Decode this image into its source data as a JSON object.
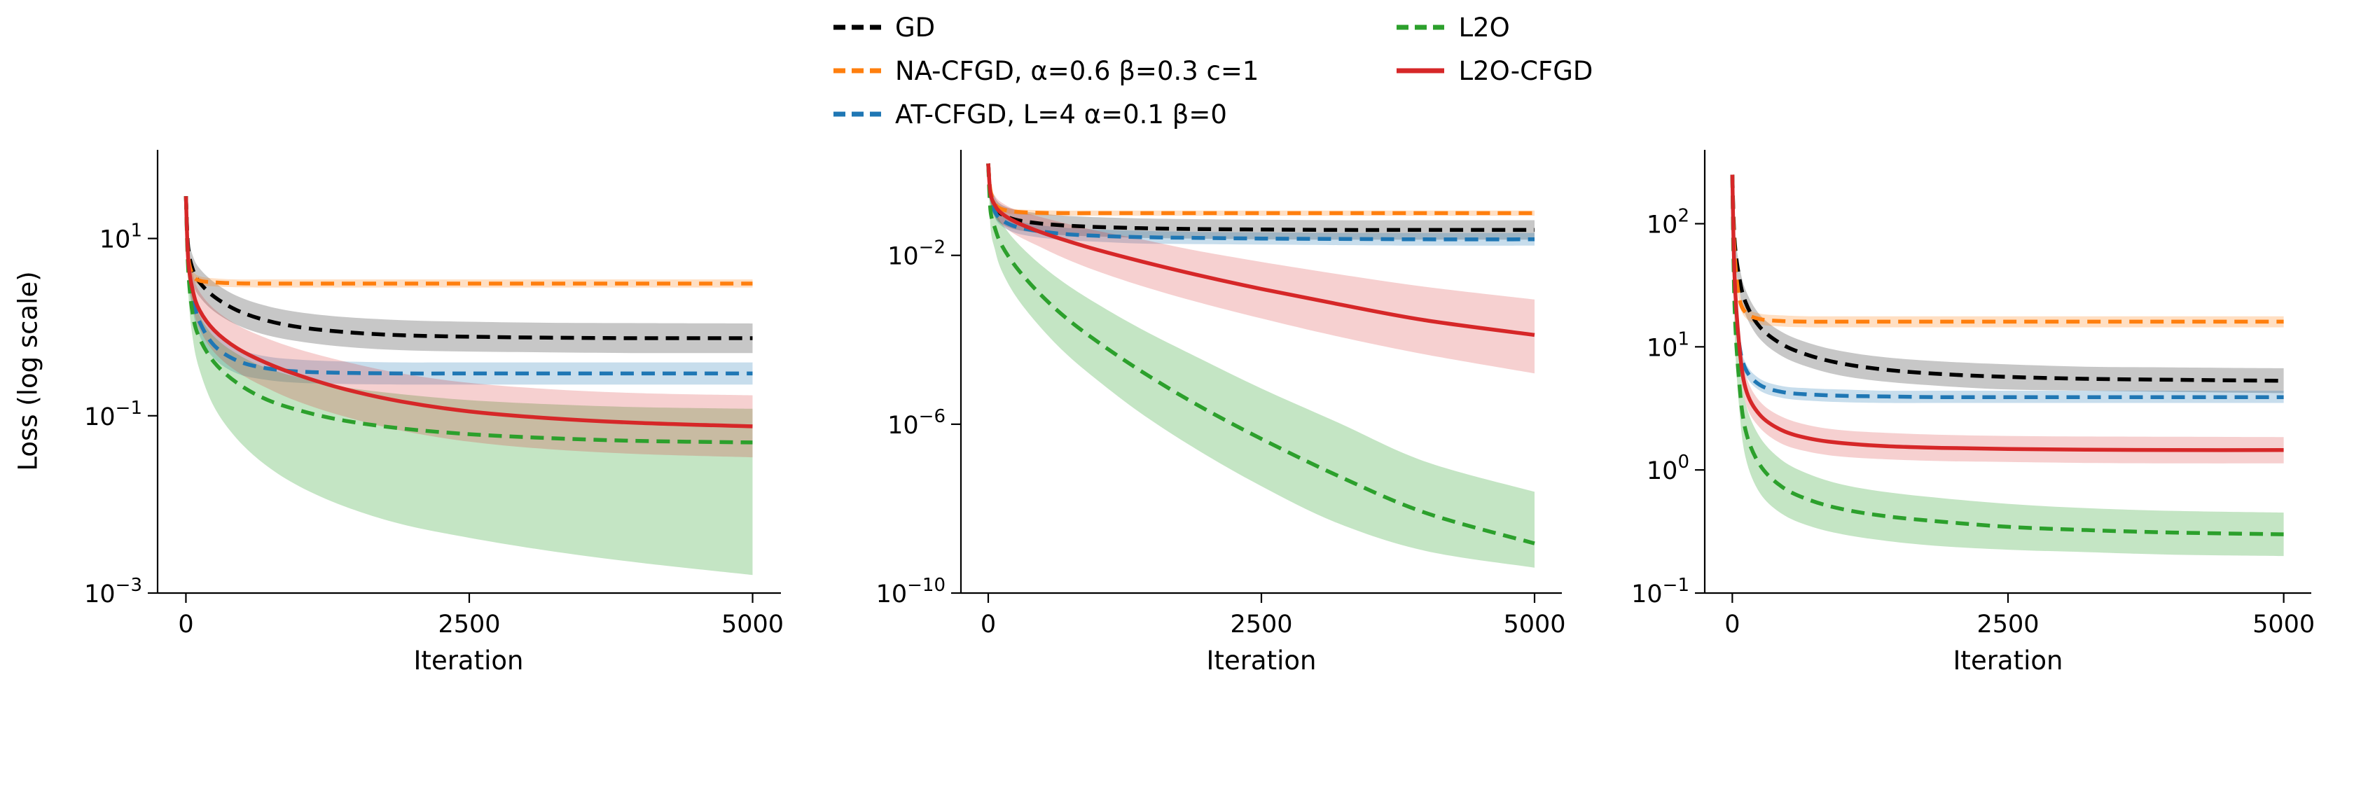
{
  "figure": {
    "background": "#ffffff",
    "legend_position": "top-center"
  },
  "legend": {
    "entries": [
      {
        "label": "GD",
        "color": "#000000",
        "dashed": true
      },
      {
        "label": "NA-CFGD, α=0.6 β=0.3 c=1",
        "color": "#ff7f0e",
        "dashed": true
      },
      {
        "label": "AT-CFGD, L=4 α=0.1 β=0",
        "color": "#1f77b4",
        "dashed": true
      },
      {
        "label": "L2O",
        "color": "#2ca02c",
        "dashed": true
      },
      {
        "label": "L2O-CFGD",
        "color": "#d62728",
        "dashed": false
      }
    ]
  },
  "chart_data": [
    {
      "type": "line",
      "xlabel": "Iteration",
      "ylabel": "Loss (log scale)",
      "grid": false,
      "xlim": [
        -250,
        5250
      ],
      "ylim_exp": [
        -3,
        2
      ],
      "x_ticks": [
        0,
        2500,
        5000
      ],
      "y_tick_exponents": [
        1,
        -1,
        -3
      ],
      "x": [
        0,
        20,
        60,
        120,
        250,
        450,
        700,
        1000,
        1400,
        1900,
        2500,
        3200,
        4000,
        5000
      ],
      "series": [
        {
          "name": "GD",
          "color": "#000000",
          "dashed": true,
          "band_alpha": 0.22,
          "y": [
            30,
            8,
            4.5,
            3.2,
            2.2,
            1.55,
            1.2,
            1.0,
            0.88,
            0.81,
            0.78,
            0.76,
            0.75,
            0.75
          ],
          "band_hi": [
            30,
            11,
            6.4,
            4.6,
            3.2,
            2.25,
            1.75,
            1.47,
            1.3,
            1.2,
            1.15,
            1.12,
            1.11,
            1.1
          ],
          "band_lo": [
            30,
            5.6,
            3.1,
            2.2,
            1.5,
            1.06,
            0.82,
            0.69,
            0.6,
            0.55,
            0.53,
            0.52,
            0.51,
            0.51
          ]
        },
        {
          "name": "NA-CFGD",
          "color": "#ff7f0e",
          "dashed": true,
          "band_alpha": 0.25,
          "y": [
            30,
            6.5,
            3.9,
            3.35,
            3.2,
            3.12,
            3.1,
            3.1,
            3.1,
            3.1,
            3.1,
            3.1,
            3.1,
            3.1
          ],
          "band_hi": [
            30,
            7.3,
            4.4,
            3.75,
            3.55,
            3.45,
            3.45,
            3.45,
            3.45,
            3.45,
            3.45,
            3.45,
            3.45,
            3.45
          ],
          "band_lo": [
            30,
            5.8,
            3.5,
            3.0,
            2.88,
            2.82,
            2.8,
            2.8,
            2.8,
            2.8,
            2.8,
            2.8,
            2.8,
            2.8
          ]
        },
        {
          "name": "AT-CFGD",
          "color": "#1f77b4",
          "dashed": true,
          "band_alpha": 0.25,
          "y": [
            30,
            5.5,
            2.2,
            1.15,
            0.62,
            0.42,
            0.345,
            0.315,
            0.305,
            0.3,
            0.3,
            0.3,
            0.3,
            0.3
          ],
          "band_hi": [
            30,
            7.5,
            3.1,
            1.65,
            0.88,
            0.58,
            0.47,
            0.43,
            0.41,
            0.4,
            0.4,
            0.4,
            0.4,
            0.4
          ],
          "band_lo": [
            30,
            4.0,
            1.55,
            0.8,
            0.44,
            0.3,
            0.255,
            0.235,
            0.228,
            0.225,
            0.225,
            0.225,
            0.225,
            0.225
          ]
        },
        {
          "name": "L2O",
          "color": "#2ca02c",
          "dashed": true,
          "band_alpha": 0.28,
          "y": [
            30,
            4.5,
            1.4,
            0.75,
            0.4,
            0.235,
            0.155,
            0.115,
            0.088,
            0.072,
            0.062,
            0.056,
            0.052,
            0.05
          ],
          "band_hi": [
            30,
            7,
            2.4,
            1.35,
            0.78,
            0.5,
            0.35,
            0.27,
            0.21,
            0.175,
            0.15,
            0.135,
            0.125,
            0.12
          ],
          "band_lo": [
            30,
            2.6,
            0.75,
            0.33,
            0.125,
            0.055,
            0.028,
            0.016,
            0.0095,
            0.006,
            0.0042,
            0.003,
            0.0022,
            0.0016
          ]
        },
        {
          "name": "L2O-CFGD",
          "color": "#d62728",
          "dashed": false,
          "band_alpha": 0.22,
          "y": [
            30,
            5.8,
            2.6,
            1.55,
            0.92,
            0.58,
            0.4,
            0.285,
            0.2,
            0.145,
            0.112,
            0.094,
            0.083,
            0.076
          ],
          "band_hi": [
            30,
            8.5,
            4.0,
            2.5,
            1.6,
            1.06,
            0.76,
            0.56,
            0.41,
            0.3,
            0.235,
            0.2,
            0.18,
            0.17
          ],
          "band_lo": [
            30,
            3.9,
            1.7,
            0.95,
            0.52,
            0.315,
            0.21,
            0.143,
            0.098,
            0.068,
            0.051,
            0.042,
            0.037,
            0.034
          ]
        }
      ]
    },
    {
      "type": "line",
      "xlabel": "Iteration",
      "ylabel": "",
      "grid": false,
      "xlim": [
        -250,
        5250
      ],
      "ylim_exp": [
        -10,
        0.5
      ],
      "x_ticks": [
        0,
        2500,
        5000
      ],
      "y_tick_exponents": [
        -2,
        -6,
        -10
      ],
      "x": [
        0,
        20,
        60,
        120,
        250,
        450,
        700,
        1000,
        1400,
        1900,
        2500,
        3200,
        4000,
        5000
      ],
      "series": [
        {
          "name": "GD",
          "color": "#000000",
          "dashed": true,
          "band_alpha": 0.22,
          "y": [
            1.5,
            0.3,
            0.14,
            0.095,
            0.07,
            0.058,
            0.051,
            0.047,
            0.044,
            0.042,
            0.041,
            0.04,
            0.04,
            0.04
          ],
          "band_hi": [
            1.5,
            0.51,
            0.24,
            0.16,
            0.12,
            0.1,
            0.087,
            0.08,
            0.075,
            0.072,
            0.07,
            0.068,
            0.068,
            0.068
          ],
          "band_lo": [
            1.5,
            0.18,
            0.082,
            0.056,
            0.041,
            0.034,
            0.03,
            0.028,
            0.026,
            0.025,
            0.024,
            0.0235,
            0.0235,
            0.0235
          ]
        },
        {
          "name": "NA-CFGD",
          "color": "#ff7f0e",
          "dashed": true,
          "band_alpha": 0.25,
          "y": [
            1.5,
            0.35,
            0.17,
            0.125,
            0.108,
            0.102,
            0.1,
            0.1,
            0.1,
            0.1,
            0.1,
            0.1,
            0.1,
            0.1
          ],
          "band_hi": [
            1.5,
            0.42,
            0.2,
            0.145,
            0.125,
            0.118,
            0.115,
            0.115,
            0.115,
            0.115,
            0.115,
            0.115,
            0.115,
            0.115
          ],
          "band_lo": [
            1.5,
            0.29,
            0.145,
            0.108,
            0.094,
            0.089,
            0.087,
            0.087,
            0.087,
            0.087,
            0.087,
            0.087,
            0.087,
            0.087
          ]
        },
        {
          "name": "AT-CFGD",
          "color": "#1f77b4",
          "dashed": true,
          "band_alpha": 0.25,
          "y": [
            1.5,
            0.25,
            0.11,
            0.07,
            0.048,
            0.038,
            0.032,
            0.029,
            0.027,
            0.026,
            0.025,
            0.0245,
            0.024,
            0.024
          ],
          "band_hi": [
            1.5,
            0.35,
            0.154,
            0.098,
            0.067,
            0.053,
            0.045,
            0.041,
            0.038,
            0.036,
            0.035,
            0.034,
            0.034,
            0.034
          ],
          "band_lo": [
            1.5,
            0.18,
            0.079,
            0.05,
            0.034,
            0.027,
            0.023,
            0.021,
            0.019,
            0.0185,
            0.018,
            0.0175,
            0.017,
            0.017
          ]
        },
        {
          "name": "L2O",
          "color": "#2ca02c",
          "dashed": true,
          "band_alpha": 0.28,
          "y": [
            1.5,
            0.12,
            0.045,
            0.018,
            0.0055,
            0.0014,
            0.00035,
            9e-05,
            1.8e-05,
            3e-06,
            4.5e-07,
            6e-08,
            8e-09,
            1.5e-09
          ],
          "band_hi": [
            1.5,
            0.3,
            0.13,
            0.06,
            0.022,
            0.007,
            0.0022,
            0.0007,
            0.00018,
            4e-05,
            7e-06,
            1.1e-06,
            1.3e-07,
            2.5e-08
          ],
          "band_lo": [
            1.5,
            0.05,
            0.014,
            0.0045,
            0.0011,
            0.00024,
            5e-05,
            1.1e-05,
            1.8e-06,
            2.6e-07,
            3.4e-08,
            4.5e-09,
            1e-09,
            4e-10
          ]
        },
        {
          "name": "L2O-CFGD",
          "color": "#d62728",
          "dashed": false,
          "band_alpha": 0.22,
          "y": [
            1.5,
            0.3,
            0.155,
            0.1,
            0.062,
            0.038,
            0.023,
            0.0135,
            0.0072,
            0.0035,
            0.0016,
            0.0007,
            0.00029,
            0.00013
          ],
          "band_hi": [
            1.5,
            0.45,
            0.26,
            0.18,
            0.12,
            0.085,
            0.058,
            0.038,
            0.024,
            0.013,
            0.007,
            0.0036,
            0.0018,
            0.0009
          ],
          "band_lo": [
            1.5,
            0.2,
            0.095,
            0.055,
            0.031,
            0.017,
            0.0085,
            0.0042,
            0.0019,
            0.0008,
            0.00032,
            0.00012,
            4.5e-05,
            1.6e-05
          ]
        }
      ]
    },
    {
      "type": "line",
      "xlabel": "Iteration",
      "ylabel": "",
      "grid": false,
      "xlim": [
        -250,
        5250
      ],
      "ylim_exp": [
        -1,
        2.6
      ],
      "x_ticks": [
        0,
        2500,
        5000
      ],
      "y_tick_exponents": [
        2,
        1,
        0,
        -1
      ],
      "x": [
        0,
        20,
        60,
        120,
        250,
        450,
        700,
        1000,
        1400,
        1900,
        2500,
        3200,
        4000,
        5000
      ],
      "series": [
        {
          "name": "GD",
          "color": "#000000",
          "dashed": true,
          "band_alpha": 0.22,
          "y": [
            250,
            75,
            38,
            23,
            14.5,
            10.5,
            8.5,
            7.3,
            6.5,
            6.0,
            5.7,
            5.5,
            5.4,
            5.3
          ],
          "band_hi": [
            250,
            94,
            48,
            29,
            18.2,
            13.2,
            10.7,
            9.2,
            8.2,
            7.6,
            7.2,
            6.9,
            6.8,
            6.7
          ],
          "band_lo": [
            250,
            60,
            30,
            18.2,
            11.6,
            8.4,
            6.8,
            5.8,
            5.2,
            4.8,
            4.5,
            4.4,
            4.3,
            4.2
          ]
        },
        {
          "name": "NA-CFGD",
          "color": "#ff7f0e",
          "dashed": true,
          "band_alpha": 0.25,
          "y": [
            250,
            60,
            26,
            19,
            16.8,
            16.2,
            16,
            16,
            16,
            16,
            16,
            16,
            16,
            16
          ],
          "band_hi": [
            250,
            66,
            29,
            21,
            18.6,
            18,
            17.7,
            17.7,
            17.7,
            17.7,
            17.7,
            17.7,
            17.7,
            17.7
          ],
          "band_lo": [
            250,
            54,
            23.5,
            17.2,
            15.2,
            14.6,
            14.4,
            14.4,
            14.4,
            14.4,
            14.4,
            14.4,
            14.4,
            14.4
          ]
        },
        {
          "name": "AT-CFGD",
          "color": "#1f77b4",
          "dashed": true,
          "band_alpha": 0.25,
          "y": [
            250,
            30,
            11,
            6.6,
            4.9,
            4.3,
            4.1,
            4.0,
            3.95,
            3.9,
            3.9,
            3.9,
            3.9,
            3.9
          ],
          "band_hi": [
            250,
            34,
            12.4,
            7.4,
            5.5,
            4.8,
            4.6,
            4.5,
            4.4,
            4.4,
            4.4,
            4.4,
            4.4,
            4.4
          ],
          "band_lo": [
            250,
            26.5,
            9.8,
            5.9,
            4.4,
            3.85,
            3.65,
            3.55,
            3.5,
            3.5,
            3.5,
            3.5,
            3.5,
            3.5
          ]
        },
        {
          "name": "L2O",
          "color": "#2ca02c",
          "dashed": true,
          "band_alpha": 0.28,
          "y": [
            250,
            22,
            5.5,
            2.1,
            1.1,
            0.73,
            0.57,
            0.48,
            0.42,
            0.38,
            0.345,
            0.325,
            0.31,
            0.3
          ],
          "band_hi": [
            250,
            33,
            8.8,
            3.5,
            1.85,
            1.2,
            0.92,
            0.76,
            0.66,
            0.59,
            0.53,
            0.49,
            0.465,
            0.45
          ],
          "band_lo": [
            250,
            14.5,
            3.4,
            1.26,
            0.65,
            0.44,
            0.35,
            0.3,
            0.265,
            0.24,
            0.225,
            0.215,
            0.205,
            0.2
          ]
        },
        {
          "name": "L2O-CFGD",
          "color": "#d62728",
          "dashed": false,
          "band_alpha": 0.22,
          "y": [
            250,
            38,
            11,
            4.6,
            2.8,
            2.1,
            1.8,
            1.65,
            1.56,
            1.51,
            1.48,
            1.46,
            1.45,
            1.45
          ],
          "band_hi": [
            250,
            50,
            14.3,
            6.0,
            3.6,
            2.7,
            2.3,
            2.1,
            2.0,
            1.93,
            1.89,
            1.87,
            1.86,
            1.85
          ],
          "band_lo": [
            250,
            29,
            8.5,
            3.5,
            2.2,
            1.63,
            1.4,
            1.28,
            1.22,
            1.18,
            1.16,
            1.14,
            1.13,
            1.13
          ]
        }
      ]
    }
  ]
}
